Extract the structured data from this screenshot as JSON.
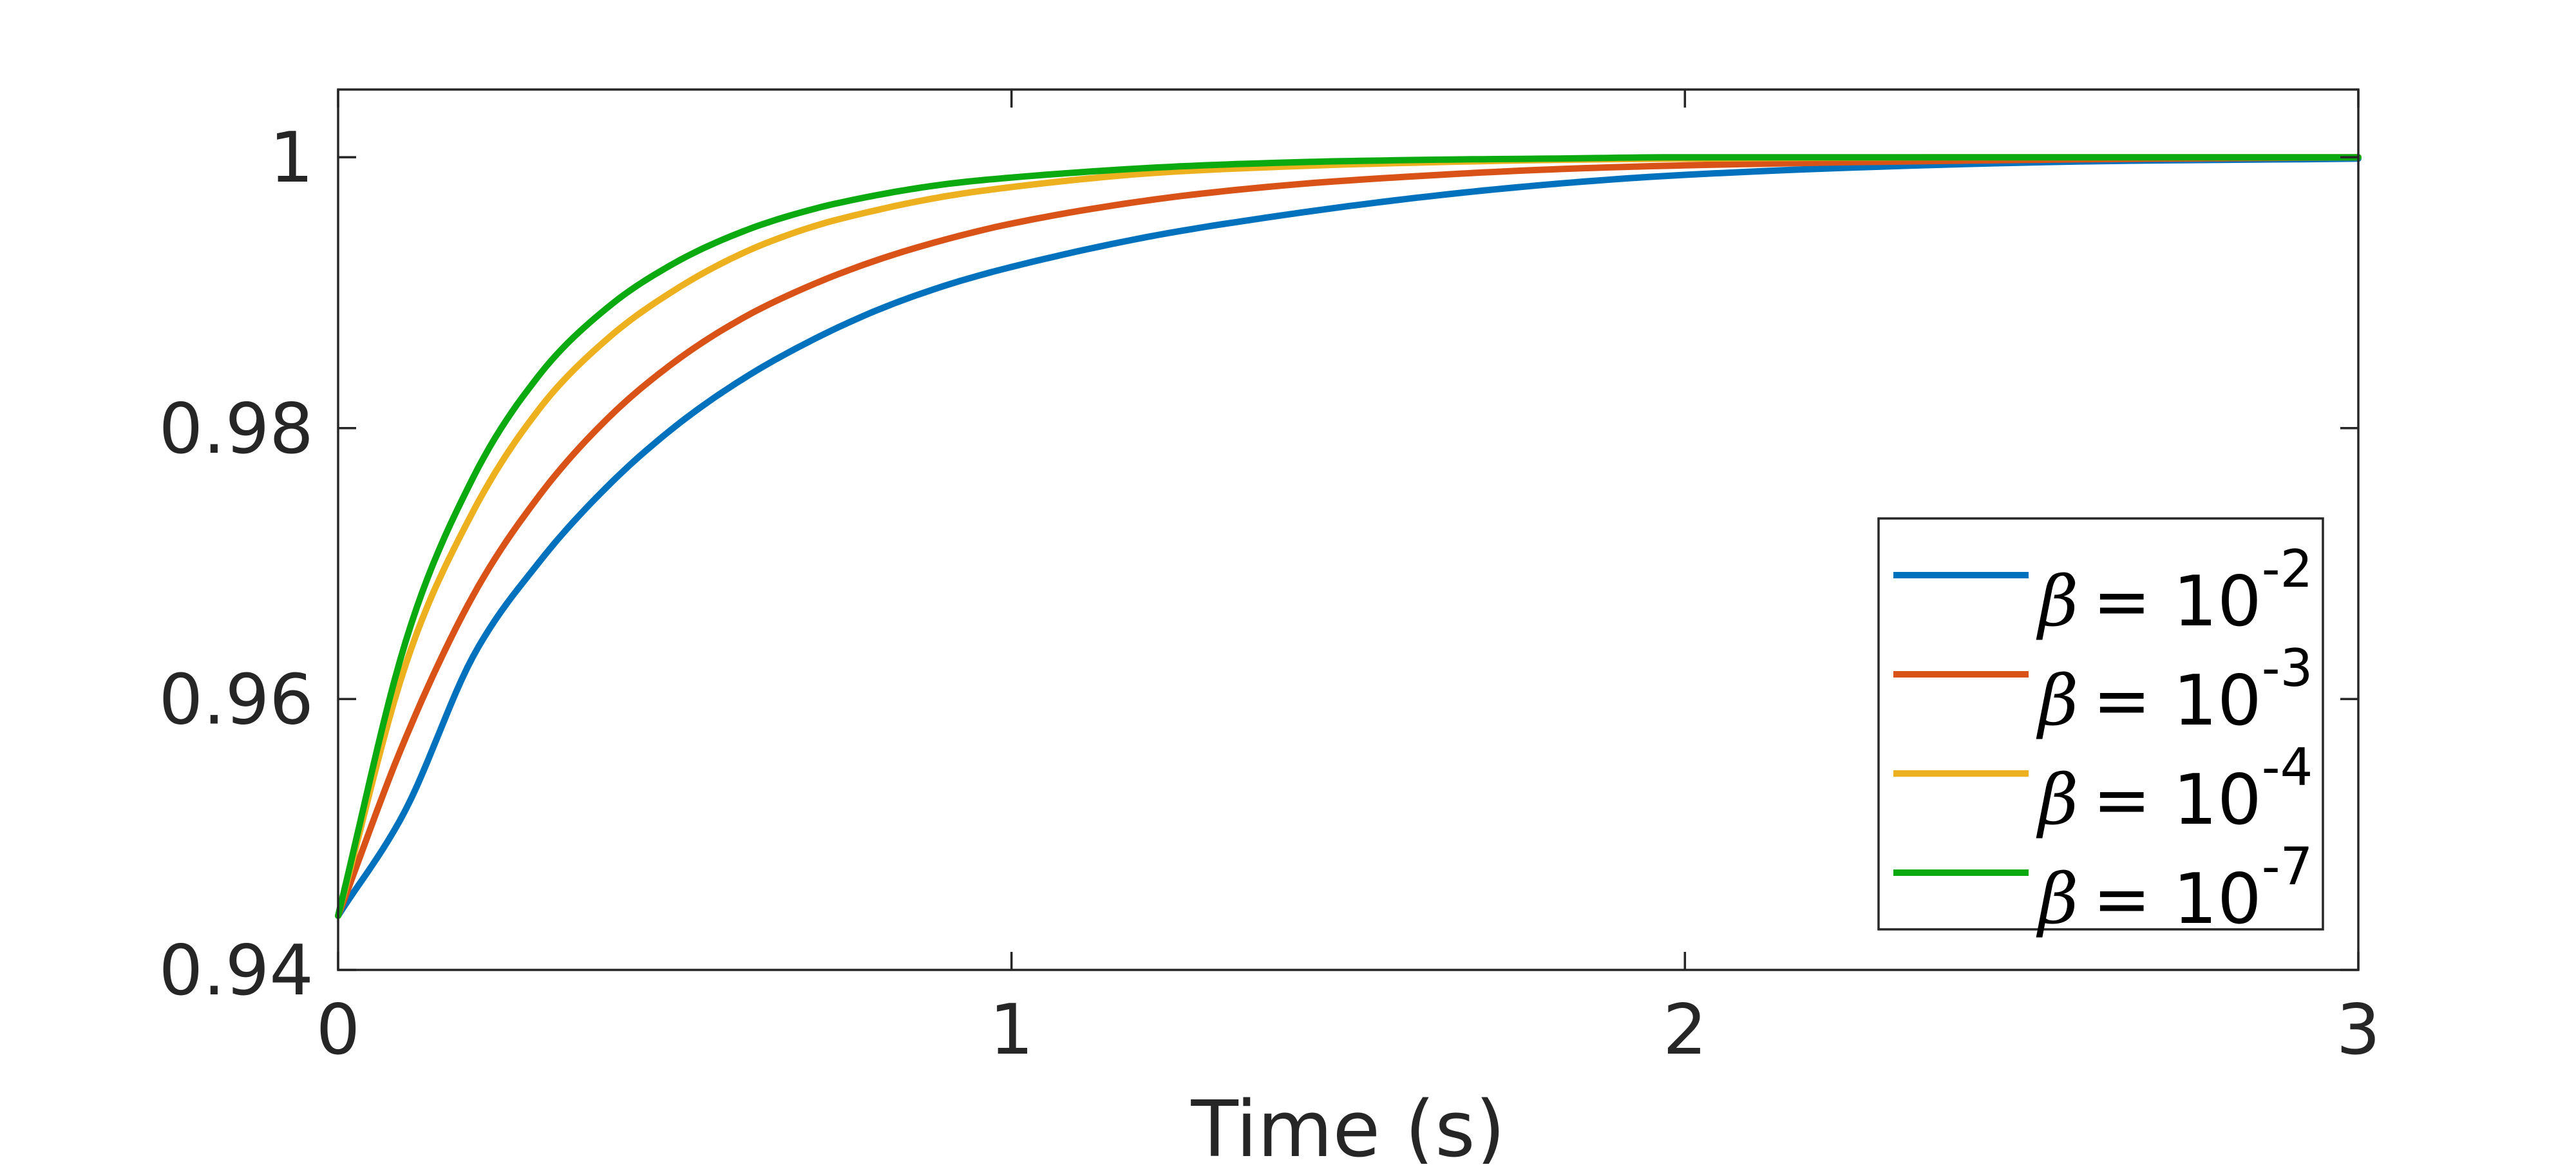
{
  "chart_data": {
    "type": "line",
    "title": "",
    "xlabel": "Time (s)",
    "ylabel": "",
    "xlim": [
      0,
      3
    ],
    "ylim": [
      0.94,
      1.005
    ],
    "xticks": [
      0,
      1,
      2,
      3
    ],
    "xtick_labels": [
      "0",
      "1",
      "2",
      "3"
    ],
    "yticks": [
      0.94,
      0.96,
      0.98,
      1.0
    ],
    "ytick_labels": [
      "0.94",
      "0.96",
      "0.98",
      "1"
    ],
    "grid": false,
    "legend_position": "lower-right",
    "series": [
      {
        "name": "β = 10^-2",
        "legend_symbol": "β",
        "legend_eq": "= 10",
        "legend_exp": "-2",
        "color": "#0072BD",
        "x": [
          0,
          0.1,
          0.2,
          0.3,
          0.4,
          0.5,
          0.6,
          0.7,
          0.8,
          0.9,
          1.0,
          1.2,
          1.4,
          1.6,
          1.8,
          2.0,
          2.5,
          3.0
        ],
        "y": [
          0.944,
          0.9518,
          0.9631,
          0.9702,
          0.9757,
          0.9801,
          0.9836,
          0.9864,
          0.9887,
          0.9905,
          0.9919,
          0.9941,
          0.9957,
          0.997,
          0.998,
          0.9987,
          0.9996,
          0.9999
        ]
      },
      {
        "name": "β = 10^-3",
        "legend_symbol": "β",
        "legend_eq": "= 10",
        "legend_exp": "-3",
        "color": "#D95319",
        "x": [
          0,
          0.1,
          0.2,
          0.3,
          0.4,
          0.5,
          0.6,
          0.7,
          0.8,
          0.9,
          1.0,
          1.2,
          1.4,
          1.6,
          1.8,
          2.0,
          2.5,
          3.0
        ],
        "y": [
          0.944,
          0.9571,
          0.9676,
          0.9751,
          0.9807,
          0.9849,
          0.9881,
          0.9905,
          0.9924,
          0.9939,
          0.9951,
          0.9968,
          0.9979,
          0.9986,
          0.9991,
          0.9994,
          0.9998,
          1.0
        ]
      },
      {
        "name": "β = 10^-4",
        "legend_symbol": "β",
        "legend_eq": "= 10",
        "legend_exp": "-4",
        "color": "#EDB120",
        "x": [
          0,
          0.1,
          0.2,
          0.3,
          0.4,
          0.5,
          0.6,
          0.7,
          0.8,
          0.9,
          1.0,
          1.2,
          1.4,
          1.6,
          1.8,
          2.0,
          2.5,
          3.0
        ],
        "y": [
          0.944,
          0.9625,
          0.9738,
          0.9815,
          0.9866,
          0.9902,
          0.9929,
          0.9948,
          0.9961,
          0.9971,
          0.9978,
          0.9988,
          0.9993,
          0.9996,
          0.9998,
          0.9999,
          1.0,
          1.0
        ]
      },
      {
        "name": "β = 10^-7",
        "legend_symbol": "β",
        "legend_eq": "= 10",
        "legend_exp": "-7",
        "color": "#0CAA11",
        "x": [
          0,
          0.1,
          0.2,
          0.3,
          0.4,
          0.5,
          0.6,
          0.7,
          0.8,
          0.9,
          1.0,
          1.2,
          1.4,
          1.6,
          1.8,
          2.0,
          2.5,
          3.0
        ],
        "y": [
          0.944,
          0.9642,
          0.9763,
          0.984,
          0.9889,
          0.9922,
          0.9945,
          0.9961,
          0.9972,
          0.998,
          0.9985,
          0.9992,
          0.9996,
          0.9998,
          0.9999,
          1.0,
          1.0,
          1.0
        ]
      }
    ]
  }
}
